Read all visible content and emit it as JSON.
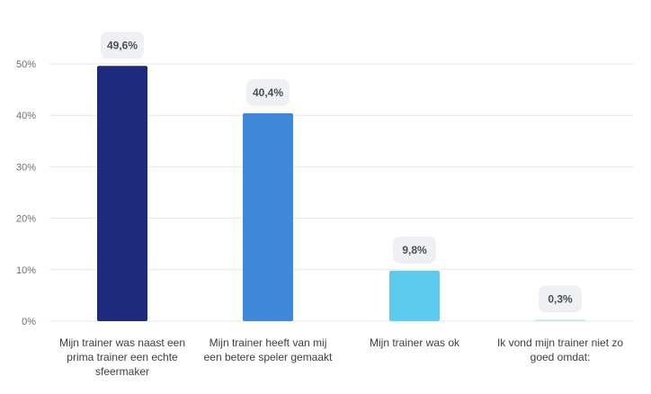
{
  "chart_data": {
    "type": "bar",
    "title": "",
    "xlabel": "",
    "ylabel": "",
    "ylim": [
      0,
      50
    ],
    "yticks": [
      "0%",
      "10%",
      "20%",
      "30%",
      "40%",
      "50%"
    ],
    "grid": true,
    "categories": [
      [
        "Mijn trainer was naast een",
        "prima trainer een echte",
        "sfeermaker"
      ],
      [
        "Mijn trainer heeft van mij",
        "een betere speler gemaakt"
      ],
      [
        "Mijn trainer was ok"
      ],
      [
        "Ik vond mijn trainer niet zo",
        "goed omdat:"
      ]
    ],
    "values": [
      49.6,
      40.4,
      9.8,
      0.3
    ],
    "value_labels": [
      "49,6%",
      "40,4%",
      "9,8%",
      "0,3%"
    ],
    "colors": [
      "#1e2a7e",
      "#3d88d8",
      "#5ccbee",
      "#bfeaf6"
    ],
    "label_bg": "#eef0f3",
    "grid_color": "#e3e5e8"
  }
}
